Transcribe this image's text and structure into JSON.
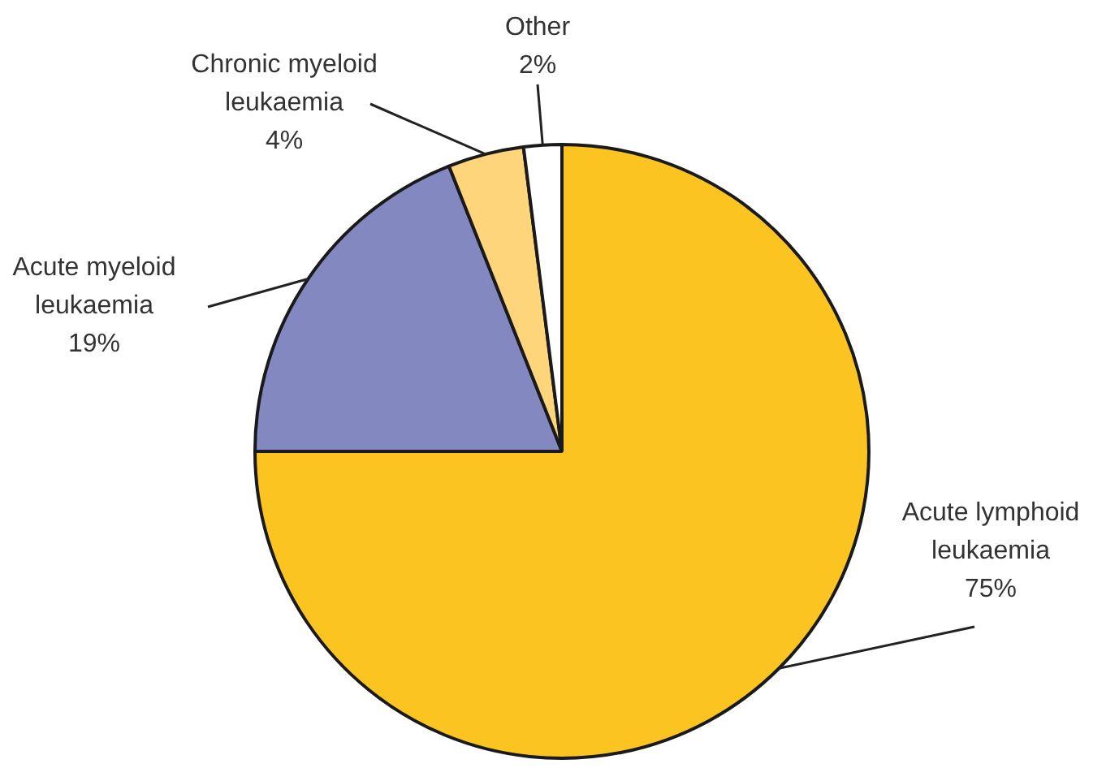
{
  "chart_data": {
    "type": "pie",
    "categories": [
      "Acute lymphoid leukaemia",
      "Acute myeloid leukaemia",
      "Chronic myeloid leukaemia",
      "Other"
    ],
    "values": [
      75,
      19,
      4,
      2
    ],
    "colors": [
      "#fcc421",
      "#8389c0",
      "#fed57a",
      "#ffffff"
    ],
    "value_labels": [
      "75%",
      "19%",
      "4%",
      "2%"
    ]
  }
}
